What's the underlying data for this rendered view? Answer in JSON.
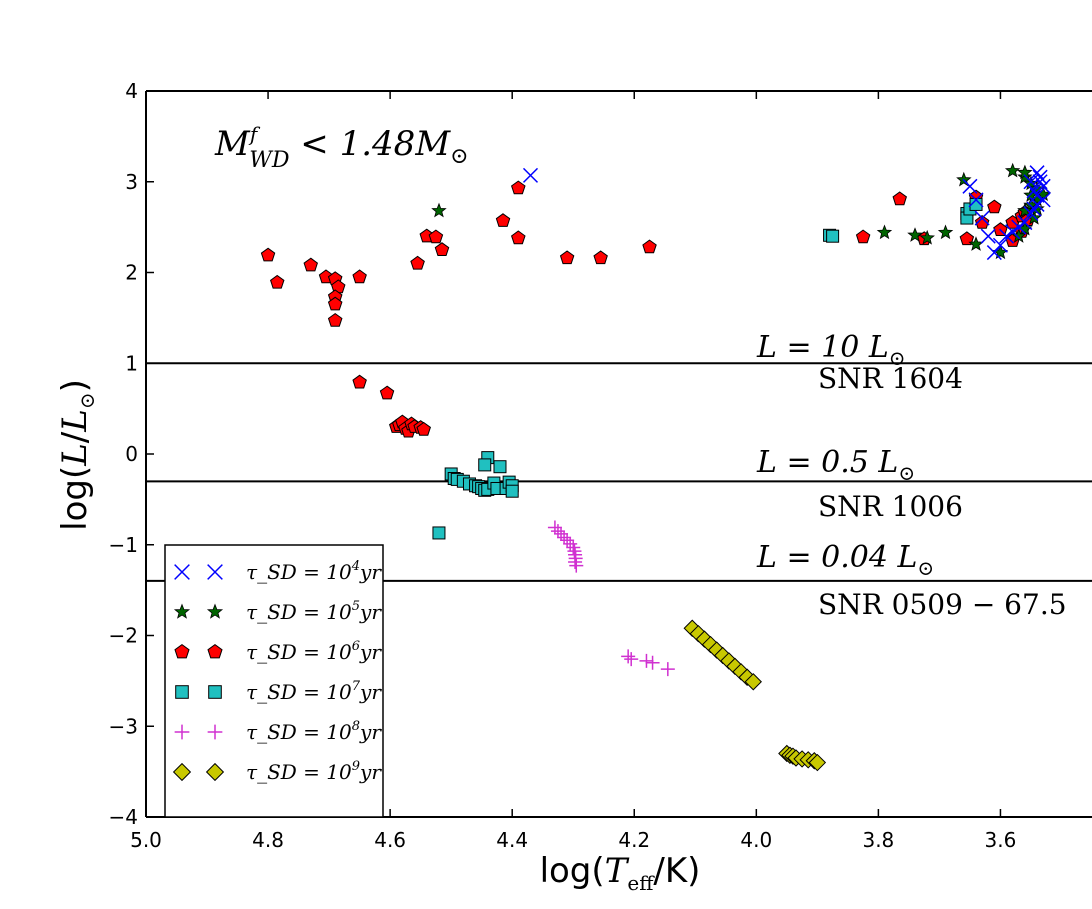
{
  "chart_data": {
    "type": "scatter",
    "xlabel": "log(T_eff/K)",
    "ylabel": "log(L/L☉)",
    "xlim": [
      5.0,
      3.45
    ],
    "ylim": [
      -4,
      4
    ],
    "x_ticks": [
      "5.0",
      "4.8",
      "4.6",
      "4.4",
      "4.2",
      "4.0",
      "3.8",
      "3.6"
    ],
    "y_ticks": [
      "4",
      "3",
      "2",
      "1",
      "0",
      "−1",
      "−2",
      "−3",
      "−4"
    ],
    "annotation": "M_WD^f < 1.48 M☉",
    "reference_lines": [
      {
        "y": 1.0,
        "label": "L = 10 L☉",
        "name": "SNR 1604"
      },
      {
        "y": -0.301,
        "label": "L = 0.5 L☉",
        "name": "SNR 1006"
      },
      {
        "y": -1.398,
        "label": "L = 0.04 L☉",
        "name": "SNR 0509 − 67.5"
      }
    ],
    "legend_location": "lower-left",
    "series": [
      {
        "name": "τ_SD = 10^4 yr",
        "label_main": "τ_SD = 10",
        "label_exp": "4",
        "marker": "x",
        "color": "#0000ff",
        "points": [
          [
            4.37,
            3.07
          ],
          [
            3.54,
            3.1
          ],
          [
            3.535,
            3.05
          ],
          [
            3.55,
            3.0
          ],
          [
            3.53,
            2.95
          ],
          [
            3.545,
            2.9
          ],
          [
            3.54,
            2.85
          ],
          [
            3.53,
            2.8
          ],
          [
            3.545,
            2.7
          ],
          [
            3.55,
            2.65
          ],
          [
            3.56,
            2.55
          ],
          [
            3.57,
            2.5
          ],
          [
            3.58,
            2.45
          ],
          [
            3.59,
            2.4
          ],
          [
            3.6,
            2.3
          ],
          [
            3.61,
            2.22
          ],
          [
            3.62,
            2.4
          ],
          [
            3.63,
            2.6
          ],
          [
            3.64,
            2.8
          ],
          [
            3.65,
            2.95
          ],
          [
            3.535,
            3.0
          ],
          [
            3.54,
            2.75
          ]
        ]
      },
      {
        "name": "τ_SD = 10^5 yr",
        "label_main": "τ_SD = 10",
        "label_exp": "5",
        "marker": "star",
        "color": "#006400",
        "points": [
          [
            4.52,
            2.68
          ],
          [
            3.79,
            2.44
          ],
          [
            3.74,
            2.41
          ],
          [
            3.72,
            2.38
          ],
          [
            3.69,
            2.44
          ],
          [
            3.66,
            3.02
          ],
          [
            3.64,
            2.31
          ],
          [
            3.6,
            2.22
          ],
          [
            3.58,
            3.12
          ],
          [
            3.56,
            3.05
          ],
          [
            3.55,
            2.98
          ],
          [
            3.54,
            2.92
          ],
          [
            3.53,
            2.86
          ],
          [
            3.54,
            2.8
          ],
          [
            3.55,
            2.74
          ],
          [
            3.56,
            2.68
          ],
          [
            3.545,
            2.6
          ],
          [
            3.56,
            2.48
          ],
          [
            3.57,
            2.4
          ],
          [
            3.56,
            3.1
          ],
          [
            3.55,
            2.85
          ],
          [
            3.54,
            2.7
          ]
        ]
      },
      {
        "name": "τ_SD = 10^6 yr",
        "label_main": "τ_SD = 10",
        "label_exp": "6",
        "marker": "pentagon",
        "color": "#ff0000",
        "points": [
          [
            4.8,
            2.19
          ],
          [
            4.785,
            1.89
          ],
          [
            4.73,
            2.08
          ],
          [
            4.705,
            1.95
          ],
          [
            4.69,
            1.93
          ],
          [
            4.685,
            1.84
          ],
          [
            4.69,
            1.73
          ],
          [
            4.69,
            1.65
          ],
          [
            4.69,
            1.47
          ],
          [
            4.65,
            1.95
          ],
          [
            4.555,
            2.1
          ],
          [
            4.54,
            2.4
          ],
          [
            4.525,
            2.39
          ],
          [
            4.515,
            2.25
          ],
          [
            4.415,
            2.57
          ],
          [
            4.39,
            2.93
          ],
          [
            4.39,
            2.38
          ],
          [
            4.31,
            2.16
          ],
          [
            4.255,
            2.16
          ],
          [
            4.175,
            2.28
          ],
          [
            3.825,
            2.39
          ],
          [
            3.765,
            2.81
          ],
          [
            3.725,
            2.37
          ],
          [
            3.655,
            2.37
          ],
          [
            3.64,
            2.83
          ],
          [
            3.63,
            2.55
          ],
          [
            3.61,
            2.72
          ],
          [
            3.6,
            2.47
          ],
          [
            3.58,
            2.35
          ],
          [
            3.58,
            2.55
          ],
          [
            3.565,
            2.62
          ],
          [
            3.56,
            2.66
          ],
          [
            3.555,
            2.58
          ],
          [
            3.565,
            2.45
          ],
          [
            4.65,
            0.79
          ],
          [
            4.605,
            0.67
          ],
          [
            4.59,
            0.3
          ],
          [
            4.585,
            0.32
          ],
          [
            4.58,
            0.35
          ],
          [
            4.575,
            0.28
          ],
          [
            4.57,
            0.25
          ],
          [
            4.565,
            0.33
          ],
          [
            4.56,
            0.3
          ],
          [
            4.55,
            0.29
          ],
          [
            4.545,
            0.27
          ]
        ]
      },
      {
        "name": "τ_SD = 10^7 yr",
        "label_main": "τ_SD = 10",
        "label_exp": "7",
        "marker": "square",
        "color": "#20c0c0",
        "points": [
          [
            3.88,
            2.41
          ],
          [
            3.875,
            2.4
          ],
          [
            3.655,
            2.65
          ],
          [
            3.655,
            2.6
          ],
          [
            3.65,
            2.7
          ],
          [
            3.64,
            2.75
          ],
          [
            4.52,
            -0.87
          ],
          [
            4.5,
            -0.22
          ],
          [
            4.495,
            -0.27
          ],
          [
            4.49,
            -0.28
          ],
          [
            4.48,
            -0.3
          ],
          [
            4.47,
            -0.33
          ],
          [
            4.46,
            -0.35
          ],
          [
            4.455,
            -0.36
          ],
          [
            4.45,
            -0.38
          ],
          [
            4.445,
            -0.4
          ],
          [
            4.44,
            -0.39
          ],
          [
            4.44,
            -0.04
          ],
          [
            4.445,
            -0.12
          ],
          [
            4.43,
            -0.32
          ],
          [
            4.425,
            -0.38
          ],
          [
            4.42,
            -0.14
          ],
          [
            4.41,
            -0.38
          ],
          [
            4.405,
            -0.31
          ],
          [
            4.4,
            -0.35
          ],
          [
            4.4,
            -0.41
          ]
        ]
      },
      {
        "name": "τ_SD = 10^8 yr",
        "label_main": "τ_SD = 10",
        "label_exp": "8",
        "marker": "plus",
        "color": "#d030d0",
        "points": [
          [
            4.33,
            -0.81
          ],
          [
            4.325,
            -0.85
          ],
          [
            4.32,
            -0.88
          ],
          [
            4.315,
            -0.92
          ],
          [
            4.31,
            -0.95
          ],
          [
            4.305,
            -0.99
          ],
          [
            4.3,
            -1.03
          ],
          [
            4.298,
            -1.07
          ],
          [
            4.297,
            -1.11
          ],
          [
            4.296,
            -1.15
          ],
          [
            4.297,
            -1.19
          ],
          [
            4.295,
            -1.23
          ],
          [
            4.21,
            -2.23
          ],
          [
            4.205,
            -2.26
          ],
          [
            4.18,
            -2.28
          ],
          [
            4.17,
            -2.3
          ],
          [
            4.145,
            -2.37
          ]
        ]
      },
      {
        "name": "τ_SD = 10^9 yr",
        "label_main": "τ_SD = 10",
        "label_exp": "9",
        "marker": "diamond",
        "color": "#c8c800",
        "points": [
          [
            4.105,
            -1.92
          ],
          [
            4.095,
            -1.98
          ],
          [
            4.085,
            -2.04
          ],
          [
            4.075,
            -2.1
          ],
          [
            4.065,
            -2.16
          ],
          [
            4.055,
            -2.22
          ],
          [
            4.045,
            -2.28
          ],
          [
            4.035,
            -2.34
          ],
          [
            4.025,
            -2.4
          ],
          [
            4.015,
            -2.46
          ],
          [
            4.005,
            -2.51
          ],
          [
            3.95,
            -3.3
          ],
          [
            3.945,
            -3.32
          ],
          [
            3.94,
            -3.33
          ],
          [
            3.935,
            -3.35
          ],
          [
            3.925,
            -3.36
          ],
          [
            3.915,
            -3.37
          ],
          [
            3.905,
            -3.38
          ],
          [
            3.9,
            -3.4
          ]
        ]
      }
    ]
  }
}
